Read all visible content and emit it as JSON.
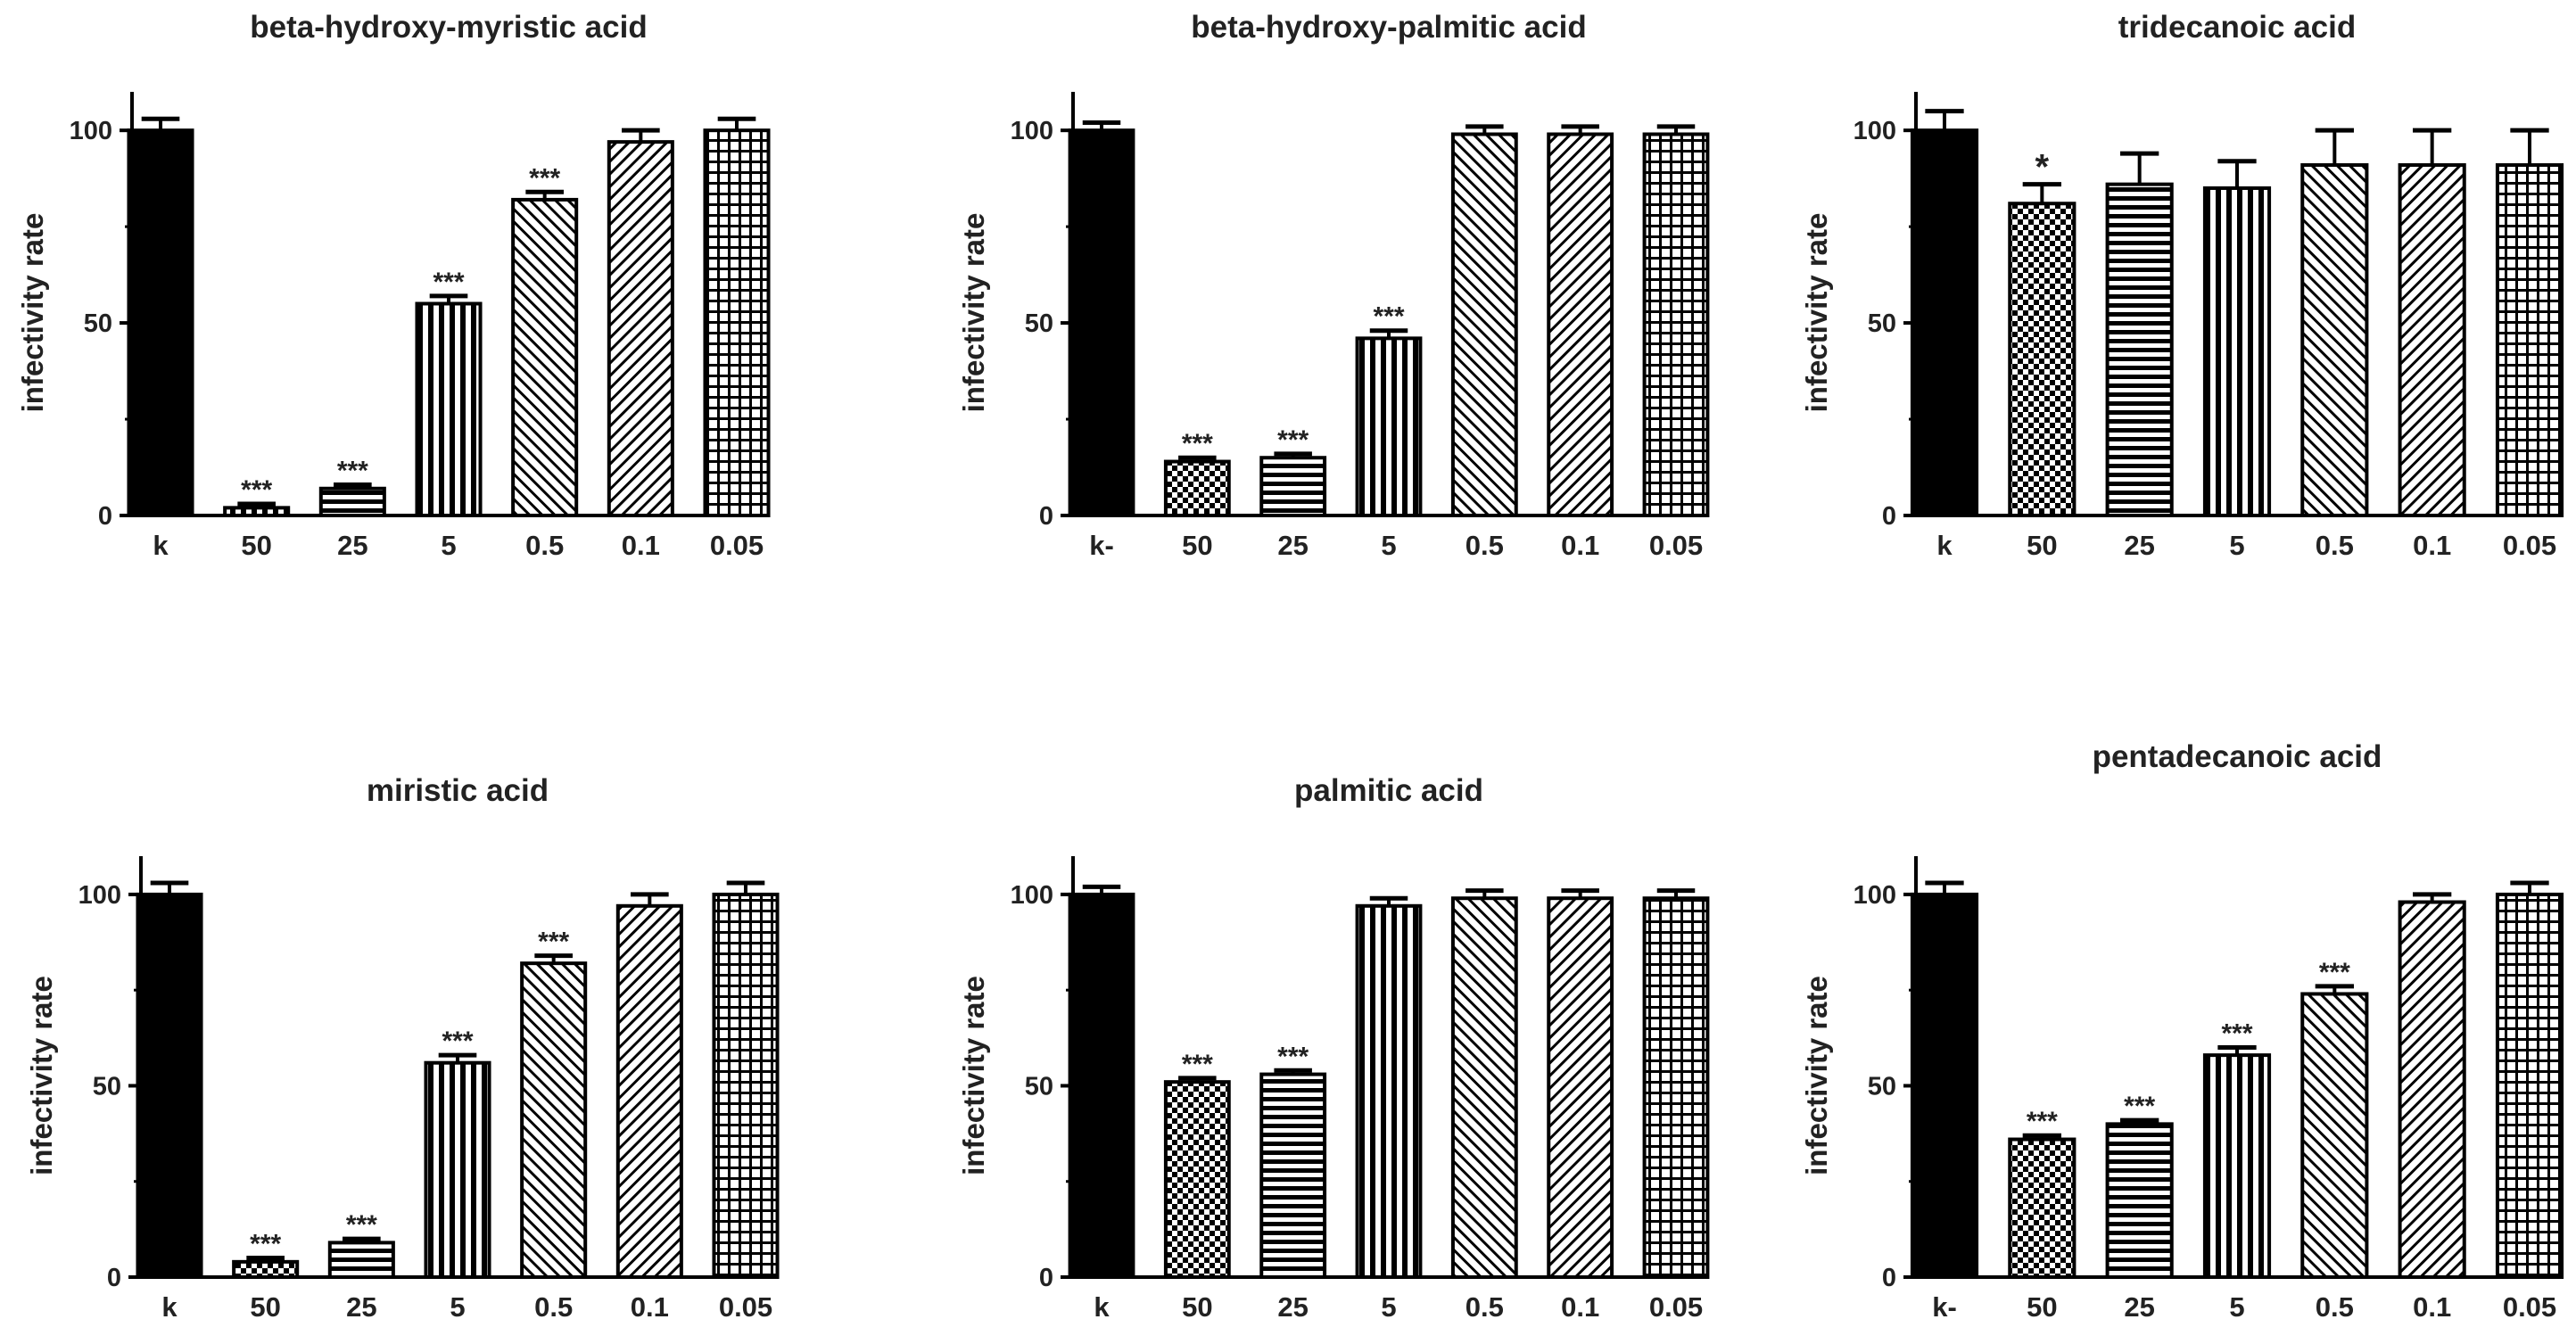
{
  "chart_data": [
    {
      "type": "bar",
      "title": "beta-hydroxy-myristic acid",
      "ylabel": "infectivity rate",
      "xlabel": "",
      "ylim": [
        0,
        110
      ],
      "yticks": [
        0,
        50,
        100
      ],
      "categories": [
        "k",
        "50",
        "25",
        "5",
        "0.5",
        "0.1",
        "0.05"
      ],
      "values": [
        100,
        2,
        7,
        55,
        82,
        97,
        100
      ],
      "errors": [
        3,
        1,
        1,
        2,
        2,
        3,
        3
      ],
      "significance": [
        "",
        "***",
        "***",
        "***",
        "***",
        "",
        ""
      ],
      "patterns": [
        "solid",
        "checker",
        "hstripe",
        "vstripe",
        "diag-right",
        "diag-left",
        "grid"
      ]
    },
    {
      "type": "bar",
      "title": "beta-hydroxy-palmitic acid",
      "ylabel": "infectivity rate",
      "xlabel": "",
      "ylim": [
        0,
        110
      ],
      "yticks": [
        0,
        50,
        100
      ],
      "categories": [
        "k-",
        "50",
        "25",
        "5",
        "0.5",
        "0.1",
        "0.05"
      ],
      "values": [
        100,
        14,
        15,
        46,
        99,
        99,
        99
      ],
      "errors": [
        2,
        1,
        1,
        2,
        2,
        2,
        2
      ],
      "significance": [
        "",
        "***",
        "***",
        "***",
        "",
        "",
        ""
      ],
      "patterns": [
        "solid",
        "checker",
        "hstripe",
        "vstripe",
        "diag-right",
        "diag-left",
        "grid"
      ]
    },
    {
      "type": "bar",
      "title": "tridecanoic acid",
      "ylabel": "infectivity rate",
      "xlabel": "",
      "ylim": [
        0,
        110
      ],
      "yticks": [
        0,
        50,
        100
      ],
      "categories": [
        "k",
        "50",
        "25",
        "5",
        "0.5",
        "0.1",
        "0.05"
      ],
      "values": [
        100,
        81,
        86,
        85,
        91,
        91,
        91
      ],
      "errors": [
        5,
        5,
        8,
        7,
        9,
        9,
        9
      ],
      "significance": [
        "",
        "*",
        "",
        "",
        "",
        "",
        ""
      ],
      "patterns": [
        "solid",
        "checker",
        "hstripe",
        "vstripe",
        "diag-right",
        "diag-left",
        "grid"
      ]
    },
    {
      "type": "bar",
      "title": "miristic acid",
      "ylabel": "infectivity rate",
      "xlabel": "",
      "ylim": [
        0,
        110
      ],
      "yticks": [
        0,
        50,
        100
      ],
      "categories": [
        "k",
        "50",
        "25",
        "5",
        "0.5",
        "0.1",
        "0.05"
      ],
      "values": [
        100,
        4,
        9,
        56,
        82,
        97,
        100
      ],
      "errors": [
        3,
        1,
        1,
        2,
        2,
        3,
        3
      ],
      "significance": [
        "",
        "***",
        "***",
        "***",
        "***",
        "",
        ""
      ],
      "patterns": [
        "solid",
        "checker",
        "hstripe",
        "vstripe",
        "diag-right",
        "diag-left",
        "grid"
      ]
    },
    {
      "type": "bar",
      "title": "palmitic acid",
      "ylabel": "infectivity rate",
      "xlabel": "",
      "ylim": [
        0,
        110
      ],
      "yticks": [
        0,
        50,
        100
      ],
      "categories": [
        "k",
        "50",
        "25",
        "5",
        "0.5",
        "0.1",
        "0.05"
      ],
      "values": [
        100,
        51,
        53,
        97,
        99,
        99,
        99
      ],
      "errors": [
        2,
        1,
        1,
        2,
        2,
        2,
        2
      ],
      "significance": [
        "",
        "***",
        "***",
        "",
        "",
        "",
        ""
      ],
      "patterns": [
        "solid",
        "checker",
        "hstripe",
        "vstripe",
        "diag-right",
        "diag-left",
        "grid"
      ]
    },
    {
      "type": "bar",
      "title": "pentadecanoic acid",
      "ylabel": "infectivity rate",
      "xlabel": "",
      "ylim": [
        0,
        110
      ],
      "yticks": [
        0,
        50,
        100
      ],
      "categories": [
        "k-",
        "50",
        "25",
        "5",
        "0.5",
        "0.1",
        "0.05"
      ],
      "values": [
        100,
        36,
        40,
        58,
        74,
        98,
        100
      ],
      "errors": [
        3,
        1,
        1,
        2,
        2,
        2,
        3
      ],
      "significance": [
        "",
        "***",
        "***",
        "***",
        "***",
        "",
        ""
      ],
      "patterns": [
        "solid",
        "checker",
        "hstripe",
        "vstripe",
        "diag-right",
        "diag-left",
        "grid"
      ]
    }
  ]
}
